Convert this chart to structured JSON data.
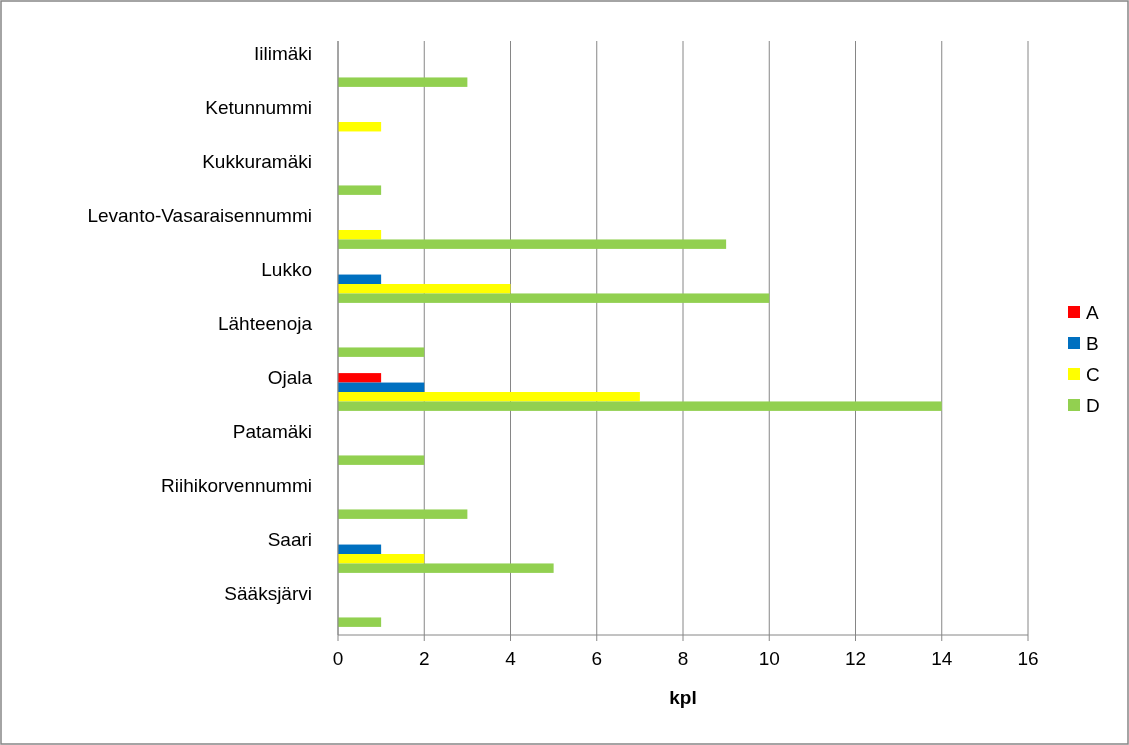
{
  "chart_data": {
    "type": "bar",
    "orientation": "horizontal",
    "xlabel": "kpl",
    "categories": [
      "Iilimäki",
      "Ketunnummi",
      "Kukkuramäki",
      "Levanto-Vasaraisennummi",
      "Lukko",
      "Lähteenoja",
      "Ojala",
      "Patamäki",
      "Riihikorvennummi",
      "Saari",
      "Sääksjärvi"
    ],
    "series": [
      {
        "name": "A",
        "color": "#ff0000",
        "values": [
          0,
          0,
          0,
          0,
          0,
          0,
          1,
          0,
          0,
          0,
          0
        ]
      },
      {
        "name": "B",
        "color": "#0070c0",
        "values": [
          0,
          0,
          0,
          0,
          1,
          0,
          2,
          0,
          0,
          1,
          0
        ]
      },
      {
        "name": "C",
        "color": "#ffff00",
        "values": [
          0,
          1,
          0,
          1,
          4,
          0,
          7,
          0,
          0,
          2,
          0
        ]
      },
      {
        "name": "D",
        "color": "#92d050",
        "values": [
          3,
          0,
          1,
          9,
          10,
          2,
          14,
          2,
          3,
          5,
          1
        ]
      }
    ],
    "xlim": [
      0,
      16
    ],
    "xticks": [
      0,
      2,
      4,
      6,
      8,
      10,
      12,
      14,
      16
    ],
    "grid": "x",
    "legend": "right"
  }
}
